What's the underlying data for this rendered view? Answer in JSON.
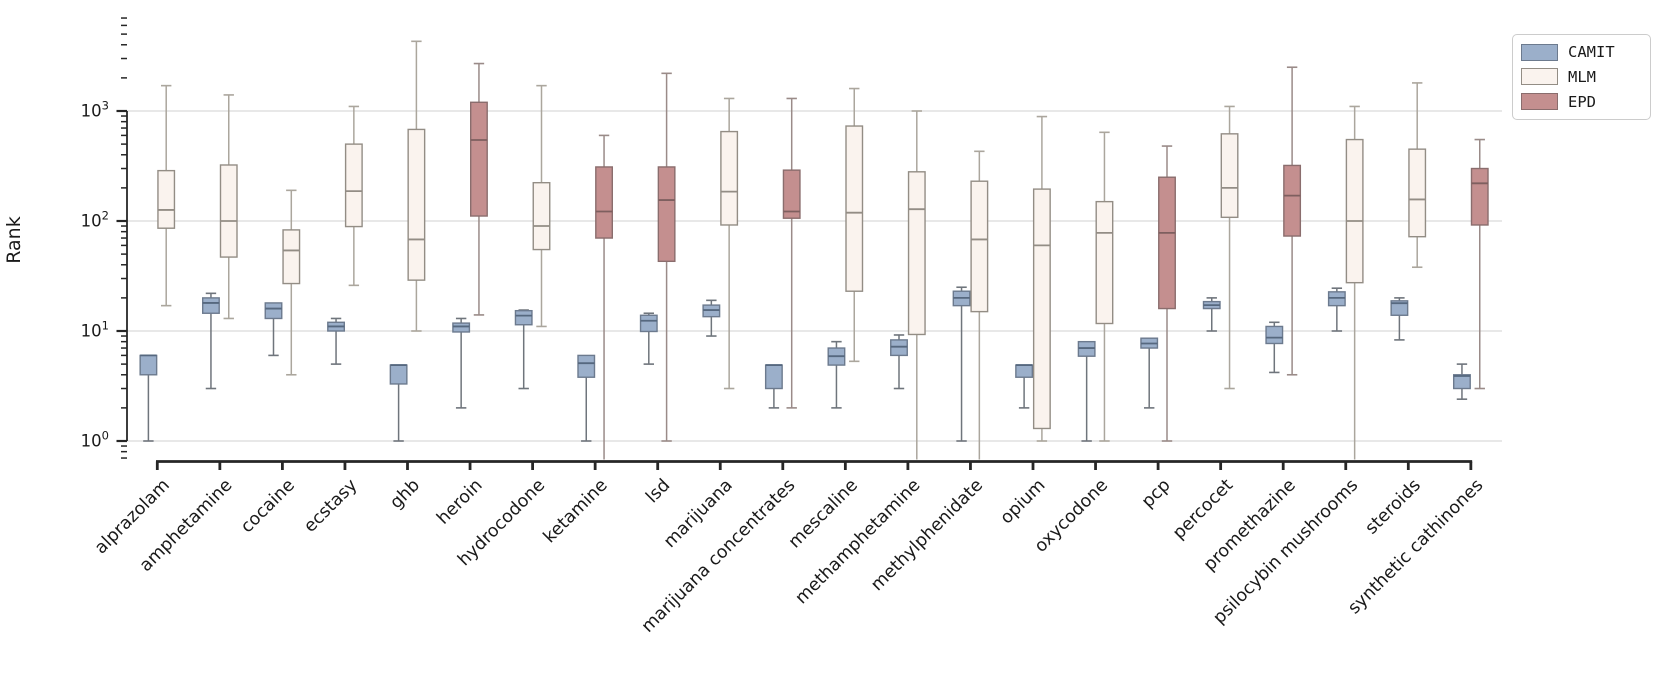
{
  "chart_data": {
    "type": "box",
    "title": "",
    "ylabel": "Rank",
    "xlabel": "",
    "y_scale": "log",
    "y_range": [
      0.65,
      7500
    ],
    "y_major_ticks": [
      1,
      10,
      100,
      1000
    ],
    "grid": true,
    "legend_position": "upper-right",
    "legend": [
      {
        "label": "CAMIT",
        "fill": "#9BAFCA",
        "edge": "#6C7A8E",
        "median": "#56687F",
        "whisker": "#6F757C"
      },
      {
        "label": "MLM",
        "fill": "#FAF3EE",
        "edge": "#938D85",
        "median": "#938D85",
        "whisker": "#ABA69D"
      },
      {
        "label": "EPD",
        "fill": "#C48F8F",
        "edge": "#8A6D6D",
        "median": "#7E5F5F",
        "whisker": "#9A8B88"
      }
    ],
    "boxes": [
      {
        "category": "alprazolam",
        "series2": "MLM",
        "camit": {
          "lo": 1,
          "q1": 4,
          "med": 6,
          "q3": 6,
          "hi": 6
        },
        "other": {
          "lo": 17,
          "q1": 86,
          "med": 126,
          "q3": 287,
          "hi": 1700
        }
      },
      {
        "category": "amphetamine",
        "series2": "MLM",
        "camit": {
          "lo": 3,
          "q1": 14.5,
          "med": 18,
          "q3": 20,
          "hi": 22
        },
        "other": {
          "lo": 13,
          "q1": 47,
          "med": 100,
          "q3": 323,
          "hi": 1400
        }
      },
      {
        "category": "cocaine",
        "series2": "MLM",
        "camit": {
          "lo": 6,
          "q1": 13,
          "med": 16,
          "q3": 18,
          "hi": 18
        },
        "other": {
          "lo": 4,
          "q1": 27,
          "med": 54,
          "q3": 83,
          "hi": 190
        }
      },
      {
        "category": "ecstasy",
        "series2": "MLM",
        "camit": {
          "lo": 5,
          "q1": 10,
          "med": 11,
          "q3": 12,
          "hi": 13
        },
        "other": {
          "lo": 26,
          "q1": 89,
          "med": 187,
          "q3": 500,
          "hi": 1100
        }
      },
      {
        "category": "ghb",
        "series2": "MLM",
        "camit": {
          "lo": 1,
          "q1": 3.3,
          "med": 4.9,
          "q3": 4.9,
          "hi": 4.9
        },
        "other": {
          "lo": 10,
          "q1": 29,
          "med": 68,
          "q3": 680,
          "hi": 4300
        }
      },
      {
        "category": "heroin",
        "series2": "EPD",
        "camit": {
          "lo": 2,
          "q1": 9.8,
          "med": 11,
          "q3": 11.8,
          "hi": 13
        },
        "other": {
          "lo": 14,
          "q1": 111,
          "med": 545,
          "q3": 1200,
          "hi": 2700
        }
      },
      {
        "category": "hydrocodone",
        "series2": "MLM",
        "camit": {
          "lo": 3,
          "q1": 11.4,
          "med": 13.8,
          "q3": 15.3,
          "hi": 15.5
        },
        "other": {
          "lo": 11,
          "q1": 55,
          "med": 90,
          "q3": 223,
          "hi": 1700
        }
      },
      {
        "category": "ketamine",
        "series2": "EPD",
        "camit": {
          "lo": 1,
          "q1": 3.8,
          "med": 5.1,
          "q3": 6,
          "hi": 6
        },
        "other": {
          "lo": null,
          "q1": 70,
          "med": 122,
          "q3": 310,
          "hi": 600
        }
      },
      {
        "category": "lsd",
        "series2": "EPD",
        "camit": {
          "lo": 5,
          "q1": 9.9,
          "med": 12.4,
          "q3": 13.9,
          "hi": 14.5
        },
        "other": {
          "lo": 1,
          "q1": 43,
          "med": 155,
          "q3": 310,
          "hi": 2200
        }
      },
      {
        "category": "marijuana",
        "series2": "MLM",
        "camit": {
          "lo": 9,
          "q1": 13.5,
          "med": 15.5,
          "q3": 17.2,
          "hi": 19
        },
        "other": {
          "lo": 3,
          "q1": 92,
          "med": 185,
          "q3": 650,
          "hi": 1300
        }
      },
      {
        "category": "marijuana concentrates",
        "series2": "EPD",
        "camit": {
          "lo": 2,
          "q1": 3,
          "med": 4.9,
          "q3": 4.9,
          "hi": 4.9
        },
        "other": {
          "lo": 2,
          "q1": 106,
          "med": 122,
          "q3": 290,
          "hi": 1300
        }
      },
      {
        "category": "mescaline",
        "series2": "MLM",
        "camit": {
          "lo": 2,
          "q1": 4.9,
          "med": 5.9,
          "q3": 7,
          "hi": 8
        },
        "other": {
          "lo": 5.3,
          "q1": 23,
          "med": 119,
          "q3": 730,
          "hi": 1600
        }
      },
      {
        "category": "methamphetamine",
        "series2": "MLM",
        "camit": {
          "lo": 3,
          "q1": 6,
          "med": 7.2,
          "q3": 8.3,
          "hi": 9.2
        },
        "other": {
          "lo": null,
          "q1": 9.3,
          "med": 128,
          "q3": 280,
          "hi": 1000
        }
      },
      {
        "category": "methylphenidate",
        "series2": "MLM",
        "camit": {
          "lo": 1,
          "q1": 17,
          "med": 20,
          "q3": 23,
          "hi": 25
        },
        "other": {
          "lo": null,
          "q1": 15,
          "med": 68,
          "q3": 230,
          "hi": 430
        }
      },
      {
        "category": "opium",
        "series2": "MLM",
        "camit": {
          "lo": 2,
          "q1": 3.8,
          "med": 4.9,
          "q3": 4.9,
          "hi": 4.9
        },
        "other": {
          "lo": 1,
          "q1": 1.3,
          "med": 60,
          "q3": 195,
          "hi": 890
        }
      },
      {
        "category": "oxycodone",
        "series2": "MLM",
        "camit": {
          "lo": 1,
          "q1": 5.9,
          "med": 7,
          "q3": 8,
          "hi": 8
        },
        "other": {
          "lo": 1,
          "q1": 11.7,
          "med": 78,
          "q3": 150,
          "hi": 640
        }
      },
      {
        "category": "pcp",
        "series2": "EPD",
        "camit": {
          "lo": 2,
          "q1": 7,
          "med": 7.7,
          "q3": 8.6,
          "hi": 8.6
        },
        "other": {
          "lo": 1,
          "q1": 16,
          "med": 78,
          "q3": 250,
          "hi": 480
        }
      },
      {
        "category": "percocet",
        "series2": "MLM",
        "camit": {
          "lo": 10,
          "q1": 16,
          "med": 17.2,
          "q3": 18.5,
          "hi": 20
        },
        "other": {
          "lo": 3,
          "q1": 108,
          "med": 200,
          "q3": 620,
          "hi": 1100
        }
      },
      {
        "category": "promethazine",
        "series2": "EPD",
        "camit": {
          "lo": 4.2,
          "q1": 7.7,
          "med": 8.7,
          "q3": 11,
          "hi": 12
        },
        "other": {
          "lo": 4,
          "q1": 73,
          "med": 170,
          "q3": 320,
          "hi": 2500
        }
      },
      {
        "category": "psilocybin mushrooms",
        "series2": "MLM",
        "camit": {
          "lo": 10,
          "q1": 17,
          "med": 20,
          "q3": 22.7,
          "hi": 24.5
        },
        "other": {
          "lo": null,
          "q1": 27.5,
          "med": 100,
          "q3": 550,
          "hi": 1100
        }
      },
      {
        "category": "steroids",
        "series2": "MLM",
        "camit": {
          "lo": 8.3,
          "q1": 13.9,
          "med": 17.9,
          "q3": 18.8,
          "hi": 20
        },
        "other": {
          "lo": 38,
          "q1": 72,
          "med": 157,
          "q3": 450,
          "hi": 1800
        }
      },
      {
        "category": "synthetic cathinones",
        "series2": "EPD",
        "camit": {
          "lo": 2.4,
          "q1": 3,
          "med": 3.9,
          "q3": 4,
          "hi": 5
        },
        "other": {
          "lo": 3,
          "q1": 92,
          "med": 220,
          "q3": 300,
          "hi": 550
        }
      }
    ]
  }
}
